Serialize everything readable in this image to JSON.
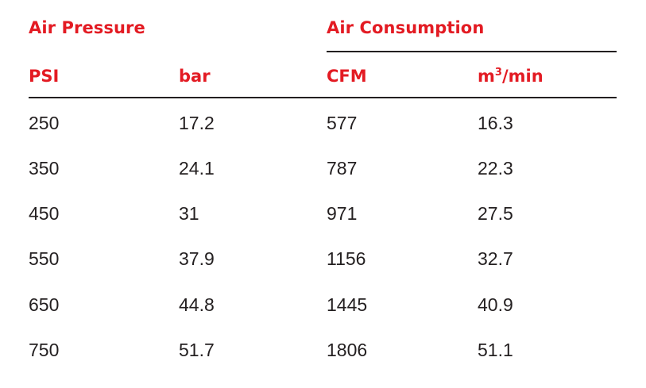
{
  "table": {
    "group_headers": [
      "Air Pressure",
      "Air Consumption"
    ],
    "unit_headers": [
      {
        "text": "PSI",
        "sup": ""
      },
      {
        "text": "bar",
        "sup": ""
      },
      {
        "text": "m",
        "sup": "3",
        "suffix": "/min"
      }
    ],
    "cfm_label": "CFM",
    "rows": [
      [
        "250",
        "17.2",
        "577",
        "16.3"
      ],
      [
        "350",
        "24.1",
        "787",
        "22.3"
      ],
      [
        "450",
        "31",
        "971",
        "27.5"
      ],
      [
        "550",
        "37.9",
        "1156",
        "32.7"
      ],
      [
        "650",
        "44.8",
        "1445",
        "40.9"
      ],
      [
        "750",
        "51.7",
        "1806",
        "51.1"
      ]
    ],
    "colors": {
      "header": "#e31b23",
      "text": "#231f20",
      "rule": "#231f20"
    }
  }
}
